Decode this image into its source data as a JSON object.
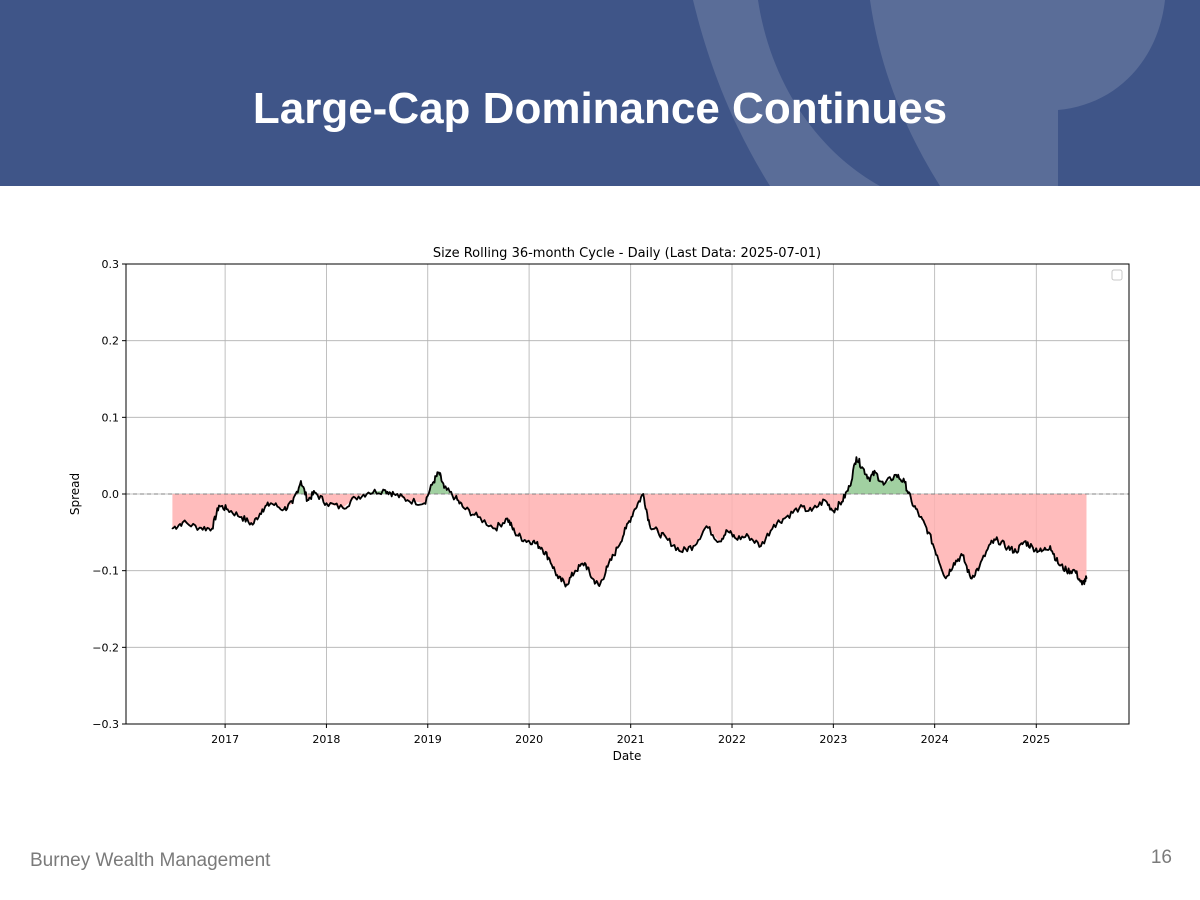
{
  "slide": {
    "title": "Large-Cap Dominance Continues",
    "footer_left": "Burney Wealth Management",
    "page_number": "16"
  },
  "colors": {
    "header_bg": "#3f5588",
    "positive_fill": "#90c890",
    "negative_fill": "#ffb0b0",
    "line": "#000000"
  },
  "chart_data": {
    "type": "area",
    "title": "Size Rolling 36-month Cycle - Daily (Last Data: 2025-07-01)",
    "xlabel": "Date",
    "ylabel": "Spread",
    "xlim": [
      "2016-01-10",
      "2025-12-01"
    ],
    "ylim": [
      -0.3,
      0.3
    ],
    "y_ticks": [
      0.3,
      0.2,
      0.1,
      0.0,
      -0.1,
      -0.2,
      -0.3
    ],
    "y_tick_labels": [
      "0.3",
      "0.2",
      "0.1",
      "0.0",
      "−0.1",
      "−0.2",
      "−0.3"
    ],
    "x_ticks": [
      "2017-01-01",
      "2018-01-01",
      "2019-01-01",
      "2020-01-01",
      "2021-01-01",
      "2022-01-01",
      "2023-01-01",
      "2024-01-01",
      "2025-01-01"
    ],
    "x_tick_labels": [
      "2017",
      "2018",
      "2019",
      "2020",
      "2021",
      "2022",
      "2023",
      "2024",
      "2025"
    ],
    "grid": true,
    "legend": "top-right (empty)",
    "baseline": 0.0,
    "fill_above": "green",
    "fill_below": "red",
    "series": [
      {
        "x": [
          "2016-06-25",
          "2016-08-01",
          "2016-10-01",
          "2016-11-15",
          "2016-12-10",
          "2017-01-10",
          "2017-03-01",
          "2017-04-10",
          "2017-05-15",
          "2017-06-15",
          "2017-08-01",
          "2017-09-01",
          "2017-10-01",
          "2017-10-25",
          "2017-11-20",
          "2018-01-01",
          "2018-03-01",
          "2018-04-15",
          "2018-06-01",
          "2018-08-01",
          "2018-09-01",
          "2018-10-20",
          "2018-12-20",
          "2019-01-20",
          "2019-02-10",
          "2019-03-01",
          "2019-04-10",
          "2019-05-10",
          "2019-07-01",
          "2019-09-01",
          "2019-10-15",
          "2019-11-10",
          "2019-12-15",
          "2020-01-15",
          "2020-02-15",
          "2020-03-15",
          "2020-04-15",
          "2020-05-15",
          "2020-06-15",
          "2020-07-20",
          "2020-08-15",
          "2020-09-10",
          "2020-10-10",
          "2020-11-15",
          "2020-12-15",
          "2021-01-15",
          "2021-02-15",
          "2021-03-10",
          "2021-04-10",
          "2021-05-15",
          "2021-07-01",
          "2021-08-15",
          "2021-10-01",
          "2021-11-15",
          "2021-12-15",
          "2022-01-15",
          "2022-03-01",
          "2022-04-15",
          "2022-06-01",
          "2022-07-15",
          "2022-09-01",
          "2022-10-15",
          "2022-12-01",
          "2023-01-01",
          "2023-02-01",
          "2023-03-01",
          "2023-03-25",
          "2023-04-15",
          "2023-05-10",
          "2023-06-01",
          "2023-07-01",
          "2023-08-15",
          "2023-09-15",
          "2023-10-10",
          "2023-11-10",
          "2023-12-10",
          "2024-01-10",
          "2024-02-10",
          "2024-03-10",
          "2024-04-10",
          "2024-05-10",
          "2024-06-10",
          "2024-07-20",
          "2024-08-15",
          "2024-09-20",
          "2024-10-20",
          "2024-11-20",
          "2024-12-20",
          "2025-01-20",
          "2025-02-20",
          "2025-03-20",
          "2025-04-20",
          "2025-05-20",
          "2025-06-15",
          "2025-07-01"
        ],
        "y": [
          -0.045,
          -0.037,
          -0.044,
          -0.045,
          -0.015,
          -0.02,
          -0.03,
          -0.04,
          -0.02,
          -0.012,
          -0.02,
          -0.012,
          0.017,
          -0.008,
          0.002,
          -0.012,
          -0.018,
          -0.005,
          0.002,
          0.005,
          0.0,
          -0.008,
          -0.012,
          0.015,
          0.028,
          0.008,
          -0.005,
          -0.018,
          -0.03,
          -0.045,
          -0.032,
          -0.05,
          -0.06,
          -0.062,
          -0.07,
          -0.085,
          -0.11,
          -0.118,
          -0.1,
          -0.09,
          -0.11,
          -0.12,
          -0.095,
          -0.07,
          -0.045,
          -0.02,
          0.0,
          -0.04,
          -0.05,
          -0.06,
          -0.075,
          -0.068,
          -0.042,
          -0.062,
          -0.048,
          -0.058,
          -0.055,
          -0.068,
          -0.04,
          -0.03,
          -0.018,
          -0.022,
          -0.008,
          -0.022,
          -0.01,
          0.01,
          0.048,
          0.035,
          0.02,
          0.028,
          0.012,
          0.025,
          0.015,
          -0.01,
          -0.03,
          -0.05,
          -0.08,
          -0.11,
          -0.09,
          -0.08,
          -0.11,
          -0.095,
          -0.065,
          -0.06,
          -0.07,
          -0.075,
          -0.062,
          -0.07,
          -0.075,
          -0.068,
          -0.09,
          -0.1,
          -0.1,
          -0.118,
          -0.11
        ]
      }
    ]
  }
}
